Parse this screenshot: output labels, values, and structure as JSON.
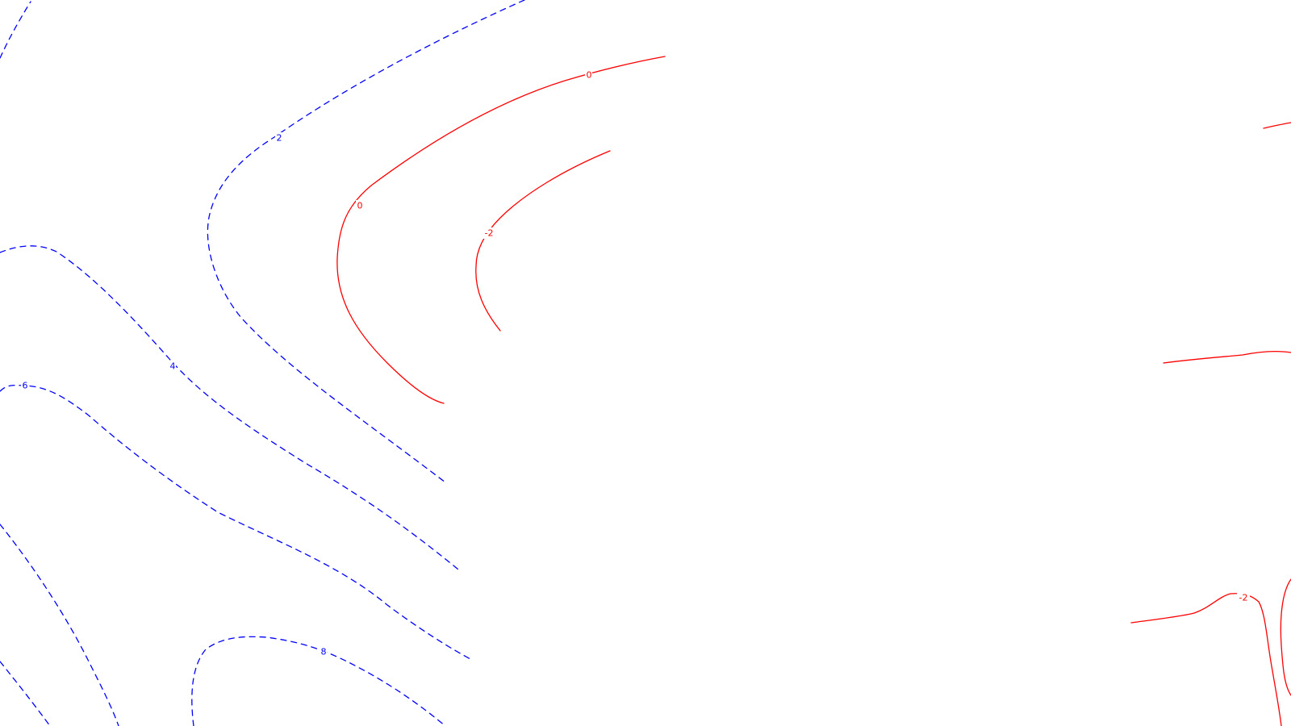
{
  "map": {
    "colors": {
      "background": "#ffffff",
      "positive_contour": "#0000ff",
      "negative_contour": "#ff0000"
    },
    "contour_labels": {
      "blue_2": "2",
      "blue_4": "4",
      "blue_6": "6",
      "blue_8": "8",
      "red_0_upper": "0",
      "red_0_left": "0",
      "red_minus2_inner": "-2",
      "red_minus2_lower_right": "-2"
    }
  }
}
